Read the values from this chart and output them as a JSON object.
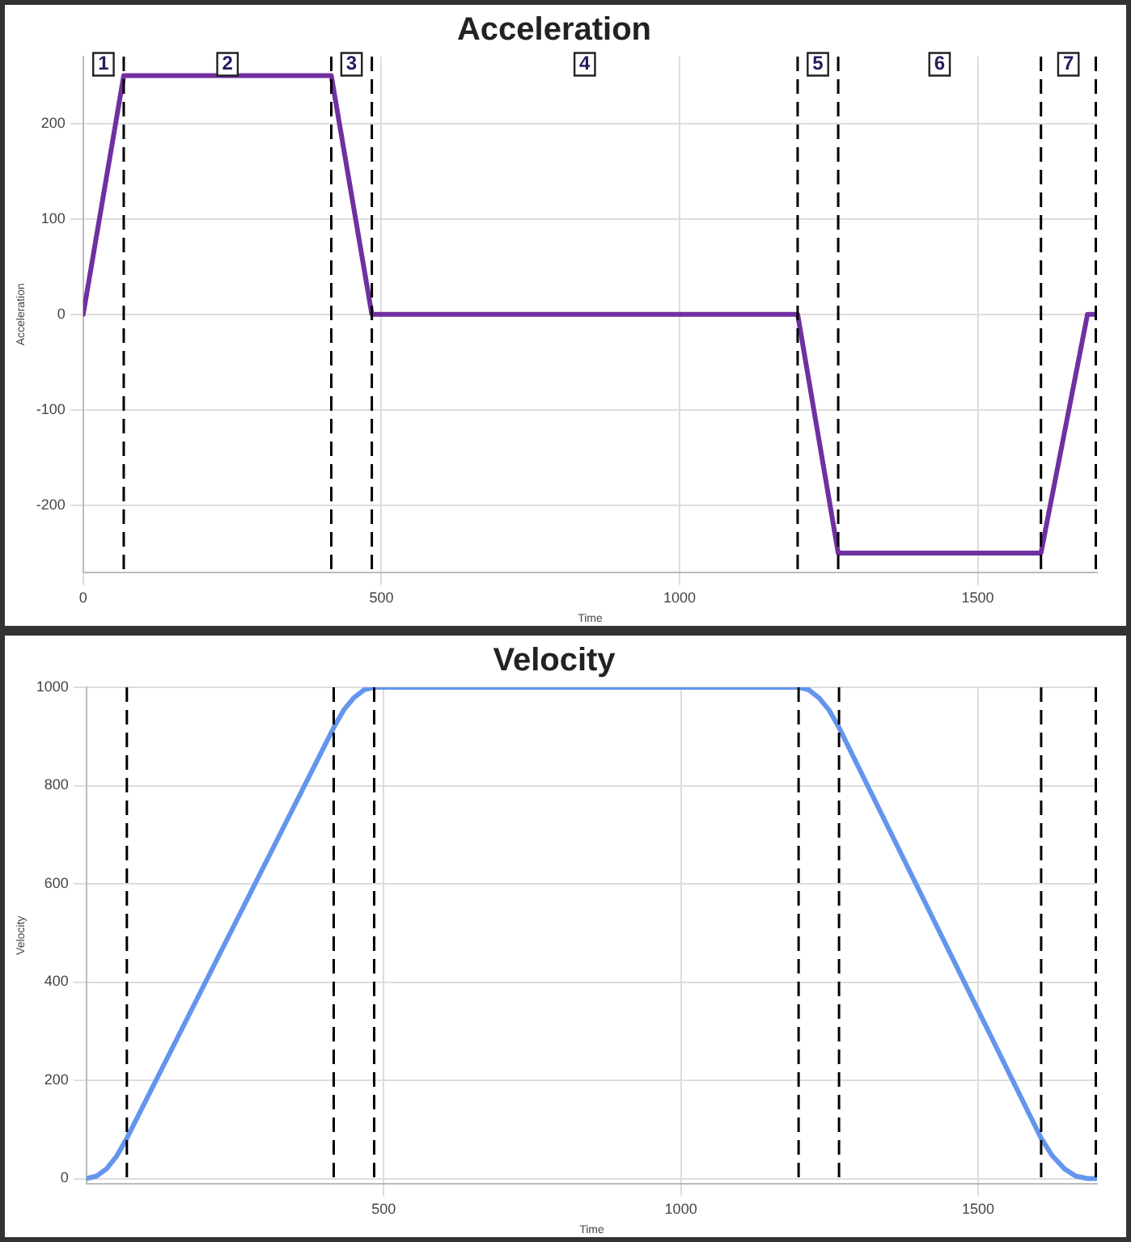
{
  "chart_data": [
    {
      "type": "line",
      "title": "Acceleration",
      "xlabel": "Time",
      "ylabel": "Acceleration",
      "series": [
        {
          "color": "#7030a0",
          "x": [
            0,
            68,
            416,
            484,
            1198,
            1266,
            1606,
            1684,
            1698
          ],
          "values": [
            0,
            250,
            250,
            0,
            0,
            -250,
            -250,
            0,
            0
          ]
        }
      ],
      "xlim": [
        0,
        1700
      ],
      "xticks": [
        0,
        500,
        1000,
        1500
      ],
      "ylim": [
        -270,
        270
      ],
      "yticks": [
        -200,
        -100,
        0,
        100,
        200
      ],
      "grid": true,
      "legend": false,
      "marker": "none",
      "line_style": "solid",
      "ref_lines": [
        {
          "axis": "x",
          "value": 68,
          "color": "#000000",
          "line_style": "dashed"
        },
        {
          "axis": "x",
          "value": 416,
          "color": "#000000",
          "line_style": "dashed"
        },
        {
          "axis": "x",
          "value": 484,
          "color": "#000000",
          "line_style": "dashed"
        },
        {
          "axis": "x",
          "value": 1198,
          "color": "#000000",
          "line_style": "dashed"
        },
        {
          "axis": "x",
          "value": 1266,
          "color": "#000000",
          "line_style": "dashed"
        },
        {
          "axis": "x",
          "value": 1606,
          "color": "#000000",
          "line_style": "dashed"
        },
        {
          "axis": "x",
          "value": 1698,
          "color": "#000000",
          "line_style": "dashed"
        }
      ],
      "annotations": [
        {
          "text": "1",
          "x": 34,
          "y": 262
        },
        {
          "text": "2",
          "x": 242,
          "y": 262
        },
        {
          "text": "3",
          "x": 450,
          "y": 262
        },
        {
          "text": "4",
          "x": 841,
          "y": 262
        },
        {
          "text": "5",
          "x": 1232,
          "y": 262
        },
        {
          "text": "6",
          "x": 1436,
          "y": 262
        },
        {
          "text": "7",
          "x": 1652,
          "y": 262
        }
      ]
    },
    {
      "type": "line",
      "title": "Velocity",
      "xlabel": "Time",
      "ylabel": "Velocity",
      "series": [
        {
          "color": "#6495ed",
          "x": [
            0,
            17,
            34,
            51,
            68,
            416,
            433,
            450,
            467,
            484,
            1198,
            1215,
            1232,
            1249,
            1266,
            1606,
            1625,
            1645,
            1664,
            1684,
            1698
          ],
          "values": [
            0,
            5,
            20,
            46,
            82,
            918,
            954,
            979,
            995,
            1000,
            1000,
            995,
            979,
            954,
            918,
            82,
            46,
            20,
            5,
            0,
            0
          ]
        }
      ],
      "xlim": [
        0,
        1700
      ],
      "xticks": [
        500,
        1000,
        1500
      ],
      "ylim": [
        -10,
        1000
      ],
      "yticks": [
        0,
        200,
        400,
        600,
        800,
        1000
      ],
      "grid": true,
      "legend": false,
      "marker": "none",
      "line_style": "solid",
      "ref_lines": [
        {
          "axis": "x",
          "value": 68,
          "color": "#000000",
          "line_style": "dashed"
        },
        {
          "axis": "x",
          "value": 416,
          "color": "#000000",
          "line_style": "dashed"
        },
        {
          "axis": "x",
          "value": 484,
          "color": "#000000",
          "line_style": "dashed"
        },
        {
          "axis": "x",
          "value": 1198,
          "color": "#000000",
          "line_style": "dashed"
        },
        {
          "axis": "x",
          "value": 1266,
          "color": "#000000",
          "line_style": "dashed"
        },
        {
          "axis": "x",
          "value": 1606,
          "color": "#000000",
          "line_style": "dashed"
        },
        {
          "axis": "x",
          "value": 1698,
          "color": "#000000",
          "line_style": "dashed"
        }
      ]
    }
  ]
}
